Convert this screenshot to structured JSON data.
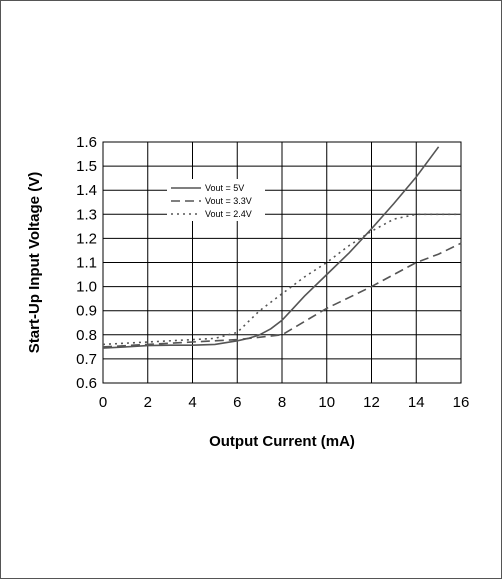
{
  "chart_data": {
    "type": "line",
    "title": "",
    "xlabel": "Output Current (mA)",
    "ylabel": "Start-Up Input Voltage (V)",
    "xlim": [
      0,
      16
    ],
    "ylim": [
      0.6,
      1.6
    ],
    "xticks": [
      "0",
      "2",
      "4",
      "6",
      "8",
      "10",
      "12",
      "14",
      "16"
    ],
    "yticks": [
      "0.6",
      "0.7",
      "0.8",
      "0.9",
      "1.0",
      "1.1",
      "1.2",
      "1.3",
      "1.4",
      "1.5",
      "1.6"
    ],
    "grid": true,
    "legend_position": "top-left",
    "series": [
      {
        "name": "Vout = 5V",
        "style": "solid",
        "color": "#555555",
        "x": [
          0,
          1,
          2,
          3,
          4,
          5,
          6,
          6.5,
          7,
          7.5,
          8,
          8.5,
          9,
          10,
          11,
          12,
          13,
          14,
          15
        ],
        "y": [
          0.745,
          0.75,
          0.755,
          0.757,
          0.757,
          0.76,
          0.775,
          0.785,
          0.8,
          0.825,
          0.86,
          0.91,
          0.96,
          1.05,
          1.14,
          1.24,
          1.345,
          1.455,
          1.58
        ]
      },
      {
        "name": "Vout = 3.3V",
        "style": "dashed",
        "color": "#555555",
        "x": [
          0,
          2,
          4,
          6,
          8,
          10,
          12,
          13,
          14,
          15,
          16
        ],
        "y": [
          0.75,
          0.76,
          0.77,
          0.78,
          0.8,
          0.91,
          1.0,
          1.05,
          1.1,
          1.135,
          1.18
        ]
      },
      {
        "name": "Vout = 2.4V",
        "style": "dotted",
        "color": "#555555",
        "x": [
          0,
          2,
          4,
          5,
          6,
          7,
          8,
          9,
          10,
          11,
          12,
          13,
          14,
          15,
          16
        ],
        "y": [
          0.76,
          0.77,
          0.78,
          0.785,
          0.81,
          0.9,
          0.97,
          1.04,
          1.1,
          1.17,
          1.23,
          1.28,
          1.3,
          1.3,
          1.3
        ]
      }
    ]
  }
}
